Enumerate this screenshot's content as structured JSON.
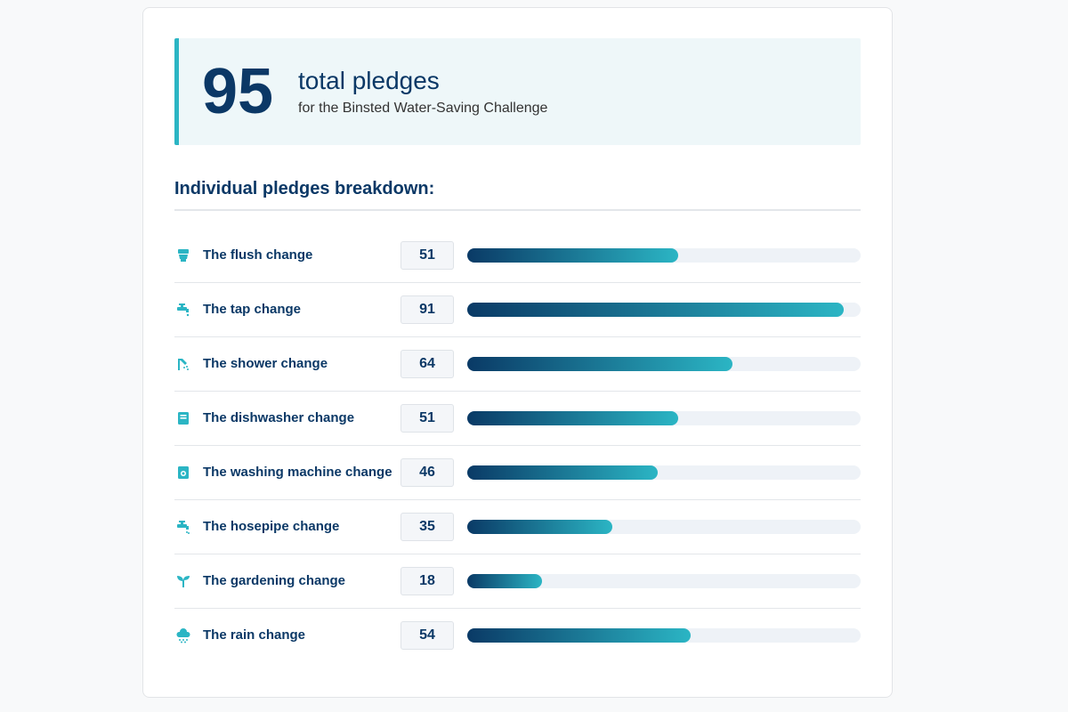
{
  "summary": {
    "total": 95,
    "label": "total pledges",
    "subtitle": "for the Binsted Water-Saving Challenge"
  },
  "breakdown": {
    "heading": "Individual pledges breakdown:",
    "items": [
      {
        "label": "The flush change",
        "value": 51
      },
      {
        "label": "The tap change",
        "value": 91
      },
      {
        "label": "The shower change",
        "value": 64
      },
      {
        "label": "The dishwasher change",
        "value": 51
      },
      {
        "label": "The washing machine change",
        "value": 46
      },
      {
        "label": "The hosepipe change",
        "value": 35
      },
      {
        "label": "The gardening change",
        "value": 18
      },
      {
        "label": "The rain change",
        "value": 54
      }
    ]
  }
}
